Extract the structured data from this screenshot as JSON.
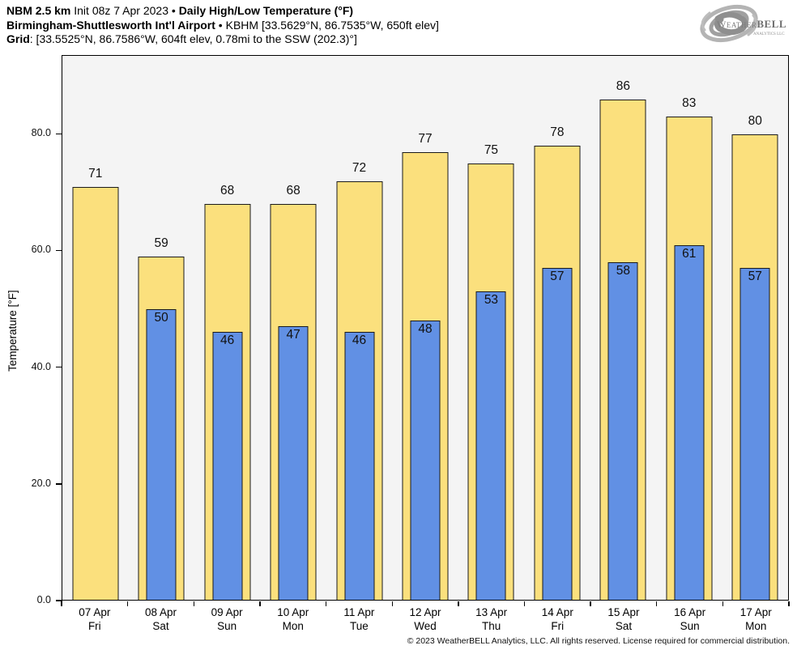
{
  "header": {
    "line1": [
      {
        "text": "NBM 2.5 km",
        "bold": true
      },
      {
        "text": " Init 08z 7 Apr 2023 • ",
        "bold": false
      },
      {
        "text": "Daily High/Low Temperature (°F)",
        "bold": true
      }
    ],
    "line2": [
      {
        "text": "Birmingham-Shuttlesworth Int'l Airport",
        "bold": true
      },
      {
        "text": " • KBHM [33.5629°N, 86.7535°W, 650ft elev]",
        "bold": false
      }
    ],
    "line3": [
      {
        "text": "Grid",
        "bold": true
      },
      {
        "text": ": [33.5525°N, 86.7586°W, 604ft elev, 0.78mi to the SSW (202.3)°]",
        "bold": false
      }
    ]
  },
  "logo": {
    "brand_prefix": "Weather",
    "brand_suffix": "BELL",
    "subtitle": "Analytics LLC"
  },
  "chart_data": {
    "type": "bar",
    "title": "NBM 2.5 km Daily High/Low Temperature (°F) — Birmingham-Shuttlesworth Int'l Airport (KBHM)",
    "xlabel": "",
    "ylabel": "Temperature [°F]",
    "ylim": [
      0,
      93.5
    ],
    "yticks": [
      0,
      20,
      40,
      60,
      80
    ],
    "ytick_labels": [
      "0.0",
      "20.0",
      "40.0",
      "60.0",
      "80.0"
    ],
    "grid": false,
    "legend_position": "none",
    "categories": [
      {
        "date": "07 Apr",
        "weekday": "Fri"
      },
      {
        "date": "08 Apr",
        "weekday": "Sat"
      },
      {
        "date": "09 Apr",
        "weekday": "Sun"
      },
      {
        "date": "10 Apr",
        "weekday": "Mon"
      },
      {
        "date": "11 Apr",
        "weekday": "Tue"
      },
      {
        "date": "12 Apr",
        "weekday": "Wed"
      },
      {
        "date": "13 Apr",
        "weekday": "Thu"
      },
      {
        "date": "14 Apr",
        "weekday": "Fri"
      },
      {
        "date": "15 Apr",
        "weekday": "Sat"
      },
      {
        "date": "16 Apr",
        "weekday": "Sun"
      },
      {
        "date": "17 Apr",
        "weekday": "Mon"
      }
    ],
    "series": [
      {
        "name": "Daily High",
        "color": "#fbe07d",
        "edge_color": "#1a1a1a",
        "values": [
          71,
          59,
          68,
          68,
          72,
          77,
          75,
          78,
          86,
          83,
          80
        ]
      },
      {
        "name": "Daily Low",
        "color": "#6190e4",
        "edge_color": "#1a1a1a",
        "values": [
          null,
          50,
          46,
          47,
          46,
          48,
          53,
          57,
          58,
          61,
          57
        ]
      }
    ]
  },
  "footer": {
    "copyright": "© 2023 WeatherBELL Analytics, LLC. All rights reserved. License required for commercial distribution."
  }
}
